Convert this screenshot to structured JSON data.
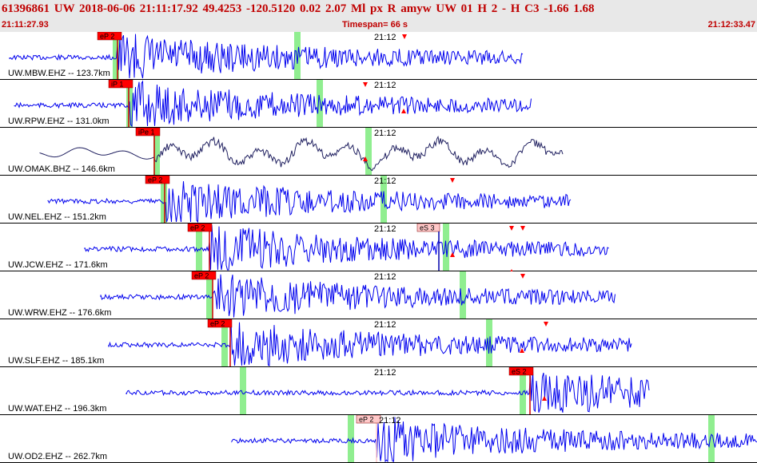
{
  "header": {
    "event_line": "61396861 UW 2018-06-06 21:11:17.92   49.4253 -120.5120   0.02  2.07 Ml  px  R amyw     UW 01  H   2  -  H C3   -1.66  1.68",
    "start_time": "21:11:27.93",
    "timespan": "Timespan=  66 s",
    "end_time": "21:12:33.47"
  },
  "colors": {
    "trace": "#0000ee",
    "trace_long_period": "#202060",
    "pick": "#ff0000",
    "pick_faded": "#ffc8c8",
    "window": "#90ee90",
    "header_text": "#c00000",
    "marker": "#ff0000"
  },
  "panels": [
    {
      "station": "UW.MBW.EHZ -- 123.7km",
      "minute_mark": "21:12",
      "pick_label": "eP 2",
      "pick_faded": false,
      "long_period": false
    },
    {
      "station": "UW.RPW.EHZ -- 131.0km",
      "minute_mark": "21:12",
      "pick_label": "iP 1",
      "pick_faded": false,
      "long_period": false
    },
    {
      "station": "UW.OMAK.BHZ -- 146.6km",
      "minute_mark": "21:12",
      "pick_label": "iPe 1",
      "pick_faded": false,
      "long_period": true
    },
    {
      "station": "UW.NEL.EHZ -- 151.2km",
      "minute_mark": "21:12",
      "pick_label": "eP 2",
      "pick_faded": false,
      "long_period": false
    },
    {
      "station": "UW.JCW.EHZ -- 171.6km",
      "minute_mark": "21:12",
      "pick_label": "eP 2",
      "pick_faded": false,
      "long_period": false,
      "second_pick_label": "eS 3"
    },
    {
      "station": "UW.WRW.EHZ -- 176.6km",
      "minute_mark": "21:12",
      "pick_label": "eP 2",
      "pick_faded": false,
      "long_period": false
    },
    {
      "station": "UW.SLF.EHZ -- 185.1km",
      "minute_mark": "21:12",
      "pick_label": "eP 2",
      "pick_faded": false,
      "long_period": false
    },
    {
      "station": "UW.WAT.EHZ -- 196.3km",
      "minute_mark": "21:12",
      "pick_label": "eS 2",
      "pick_faded": false,
      "long_period": false
    },
    {
      "station": "UW.OD2.EHZ -- 262.7km",
      "minute_mark": "21:12",
      "pick_label": "eP 2",
      "pick_faded": true,
      "long_period": false
    }
  ]
}
